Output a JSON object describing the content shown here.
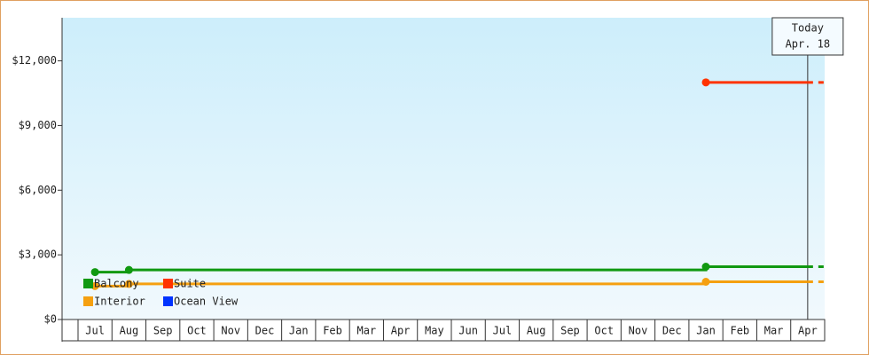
{
  "chart_data": {
    "type": "step-line",
    "categories": [
      "Jul",
      "Aug",
      "Sep",
      "Oct",
      "Nov",
      "Dec",
      "Jan",
      "Feb",
      "Mar",
      "Apr",
      "May",
      "Jun",
      "Jul",
      "Aug",
      "Sep",
      "Oct",
      "Nov",
      "Dec",
      "Jan",
      "Feb",
      "Mar",
      "Apr"
    ],
    "series": [
      {
        "name": "Balcony",
        "color": "#119911",
        "values": [
          2200,
          2300,
          2300,
          2300,
          2300,
          2300,
          2300,
          2300,
          2300,
          2300,
          2300,
          2300,
          2300,
          2300,
          2300,
          2300,
          2300,
          2300,
          2450,
          2450,
          2450,
          2450
        ]
      },
      {
        "name": "Suite",
        "color": "#ff3300",
        "values": [
          null,
          null,
          null,
          null,
          null,
          null,
          null,
          null,
          null,
          null,
          null,
          null,
          null,
          null,
          null,
          null,
          null,
          null,
          11000,
          11000,
          11000,
          11000
        ]
      },
      {
        "name": "Interior",
        "color": "#f5a010",
        "values": [
          1550,
          1650,
          1650,
          1650,
          1650,
          1650,
          1650,
          1650,
          1650,
          1650,
          1650,
          1650,
          1650,
          1650,
          1650,
          1650,
          1650,
          1650,
          1750,
          1750,
          1750,
          1750
        ]
      },
      {
        "name": "Ocean View",
        "color": "#0033ff",
        "values": [
          null,
          null,
          null,
          null,
          null,
          null,
          null,
          null,
          null,
          null,
          null,
          null,
          null,
          null,
          null,
          null,
          null,
          null,
          null,
          null,
          null,
          null
        ]
      }
    ],
    "ylim": [
      0,
      14000
    ],
    "yticks": [
      {
        "value": 0,
        "label": "$0"
      },
      {
        "value": 3000,
        "label": "$3,000"
      },
      {
        "value": 6000,
        "label": "$6,000"
      },
      {
        "value": 9000,
        "label": "$9,000"
      },
      {
        "value": 12000,
        "label": "$12,000"
      }
    ],
    "annotation": {
      "lines": [
        "Today",
        "Apr. 18"
      ]
    }
  }
}
